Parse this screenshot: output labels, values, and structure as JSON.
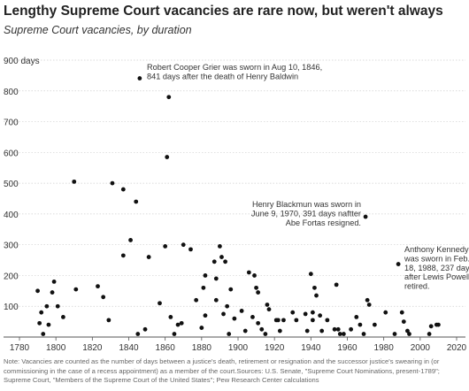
{
  "chart_data": {
    "type": "scatter",
    "title": "Lengthy Supreme Court vacancies are rare now, but weren't always",
    "subtitle": "Supreme Court vacancies, by duration",
    "xlabel": "",
    "ylabel": "",
    "y_unit_label": "900 days",
    "xlim": [
      1780,
      2020
    ],
    "ylim": [
      0,
      900
    ],
    "x_ticks": [
      1780,
      1800,
      1820,
      1840,
      1860,
      1880,
      1900,
      1920,
      1940,
      1960,
      1980,
      2000,
      2020
    ],
    "y_ticks": [
      100,
      200,
      300,
      400,
      500,
      600,
      700,
      800
    ],
    "grid": true,
    "points": [
      [
        1790,
        150
      ],
      [
        1791,
        45
      ],
      [
        1792,
        80
      ],
      [
        1793,
        10
      ],
      [
        1795,
        100
      ],
      [
        1796,
        40
      ],
      [
        1798,
        145
      ],
      [
        1799,
        180
      ],
      [
        1801,
        100
      ],
      [
        1804,
        65
      ],
      [
        1810,
        505
      ],
      [
        1811,
        155
      ],
      [
        1823,
        165
      ],
      [
        1826,
        130
      ],
      [
        1829,
        55
      ],
      [
        1831,
        500
      ],
      [
        1837,
        480
      ],
      [
        1837,
        265
      ],
      [
        1841,
        315
      ],
      [
        1844,
        440
      ],
      [
        1845,
        10
      ],
      [
        1846,
        841
      ],
      [
        1849,
        25
      ],
      [
        1851,
        260
      ],
      [
        1857,
        110
      ],
      [
        1860,
        295
      ],
      [
        1861,
        585
      ],
      [
        1862,
        780
      ],
      [
        1863,
        65
      ],
      [
        1865,
        10
      ],
      [
        1867,
        40
      ],
      [
        1869,
        45
      ],
      [
        1870,
        300
      ],
      [
        1874,
        285
      ],
      [
        1877,
        120
      ],
      [
        1880,
        30
      ],
      [
        1881,
        160
      ],
      [
        1882,
        200
      ],
      [
        1882,
        70
      ],
      [
        1887,
        245
      ],
      [
        1888,
        190
      ],
      [
        1888,
        120
      ],
      [
        1890,
        295
      ],
      [
        1891,
        260
      ],
      [
        1892,
        75
      ],
      [
        1893,
        245
      ],
      [
        1894,
        100
      ],
      [
        1895,
        10
      ],
      [
        1896,
        155
      ],
      [
        1898,
        60
      ],
      [
        1902,
        85
      ],
      [
        1904,
        20
      ],
      [
        1906,
        210
      ],
      [
        1908,
        65
      ],
      [
        1909,
        200
      ],
      [
        1910,
        160
      ],
      [
        1911,
        145
      ],
      [
        1911,
        45
      ],
      [
        1913,
        25
      ],
      [
        1915,
        10
      ],
      [
        1916,
        105
      ],
      [
        1917,
        90
      ],
      [
        1921,
        55
      ],
      [
        1922,
        55
      ],
      [
        1923,
        20
      ],
      [
        1925,
        55
      ],
      [
        1930,
        80
      ],
      [
        1932,
        55
      ],
      [
        1937,
        75
      ],
      [
        1938,
        20
      ],
      [
        1940,
        205
      ],
      [
        1941,
        80
      ],
      [
        1941,
        55
      ],
      [
        1942,
        160
      ],
      [
        1943,
        135
      ],
      [
        1945,
        70
      ],
      [
        1946,
        20
      ],
      [
        1949,
        55
      ],
      [
        1953,
        25
      ],
      [
        1954,
        170
      ],
      [
        1955,
        25
      ],
      [
        1956,
        10
      ],
      [
        1958,
        10
      ],
      [
        1962,
        25
      ],
      [
        1965,
        65
      ],
      [
        1967,
        40
      ],
      [
        1969,
        10
      ],
      [
        1970,
        391
      ],
      [
        1971,
        120
      ],
      [
        1972,
        105
      ],
      [
        1975,
        40
      ],
      [
        1981,
        80
      ],
      [
        1986,
        10
      ],
      [
        1988,
        237
      ],
      [
        1990,
        80
      ],
      [
        1991,
        50
      ],
      [
        1993,
        20
      ],
      [
        1994,
        10
      ],
      [
        2005,
        10
      ],
      [
        2006,
        35
      ],
      [
        2009,
        40
      ],
      [
        2010,
        40
      ]
    ],
    "annotations": [
      {
        "lines": [
          "Robert Cooper Grier was sworn in Aug 10, 1846,",
          "841 days after the death of Henry Baldwin"
        ]
      },
      {
        "lines": [
          "Henry Blackmun was sworn in",
          "June 9, 1970, 391 days naftter",
          "Abe Fortas resigned."
        ]
      },
      {
        "lines": [
          "Anthony Kennedy",
          "was sworn in Feb.",
          "18, 1988, 237 days",
          "after Lewis Powell",
          "retired."
        ]
      }
    ]
  },
  "note": "Note: Vacancies are counted as the number of days between a justice's death, retirement or resignation and the successor justice's swearing in (or commissioning in the case of a recess appointment) as a member of the court.Sources: U.S. Senate, \"Supreme Court Nominations, present-1789\"; Supreme Court, \"Members of the Supreme Court of the United States\"; Pew Research Center calculations"
}
